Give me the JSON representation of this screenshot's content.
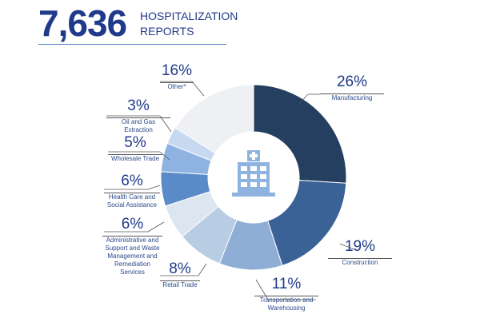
{
  "header": {
    "count": "7,636",
    "label": "HOSPITALIZATION REPORTS"
  },
  "chart_data": {
    "type": "pie",
    "donut": true,
    "title": "7,636 HOSPITALIZATION REPORTS",
    "center_icon": "hospital-icon",
    "slices": [
      {
        "label": "Manufacturing",
        "value": 26,
        "pct": "26%",
        "color": "#243f60"
      },
      {
        "label": "Construction",
        "value": 19,
        "pct": "19%",
        "color": "#3a6296"
      },
      {
        "label": "Transportation and Warehousing",
        "value": 11,
        "pct": "11%",
        "color": "#8eaed6"
      },
      {
        "label": "Retail Trade",
        "value": 8,
        "pct": "8%",
        "color": "#b8cce4"
      },
      {
        "label": "Administrative and Support and Waste Management and Remediation Services",
        "value": 6,
        "pct": "6%",
        "color": "#dce6f1"
      },
      {
        "label": "Health Care and Social Assistance",
        "value": 6,
        "pct": "6%",
        "color": "#5a8ac8"
      },
      {
        "label": "Wholesale Trade",
        "value": 5,
        "pct": "5%",
        "color": "#8fb3e0"
      },
      {
        "label": "Oil and Gas Extraction",
        "value": 3,
        "pct": "3%",
        "color": "#c6d9f0"
      },
      {
        "label": "Other*",
        "value": 16,
        "pct": "16%",
        "color": "#eef0f4"
      }
    ]
  }
}
